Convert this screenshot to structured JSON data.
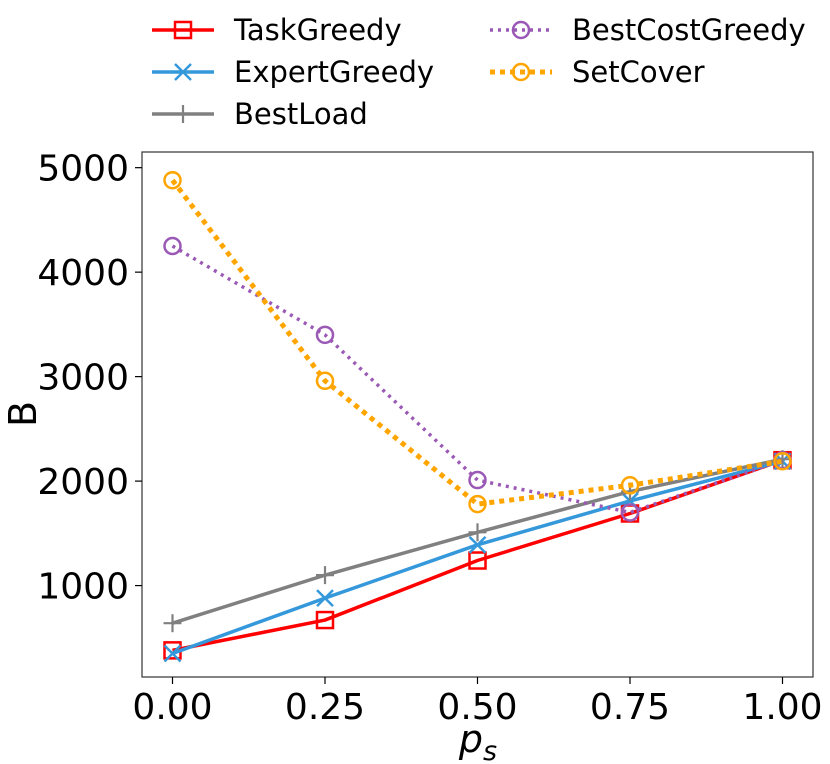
{
  "chart_data": {
    "type": "line",
    "title": "",
    "xlabel": "p",
    "xlabel_sub": "s",
    "ylabel": "B",
    "x": [
      0.0,
      0.25,
      0.5,
      0.75,
      1.0
    ],
    "x_tick_labels": [
      "0.00",
      "0.25",
      "0.50",
      "0.75",
      "1.00"
    ],
    "y_ticks": [
      1000,
      2000,
      3000,
      4000,
      5000
    ],
    "y_tick_labels": [
      "1000",
      "2000",
      "3000",
      "4000",
      "5000"
    ],
    "xlim": [
      -0.05,
      1.05
    ],
    "ylim": [
      125,
      5150
    ],
    "grid": false,
    "legend_position": "top",
    "series": [
      {
        "name": "TaskGreedy",
        "values": [
          380,
          670,
          1240,
          1690,
          2200
        ],
        "color": "#ff0000",
        "marker": "square",
        "style": "solid"
      },
      {
        "name": "ExpertGreedy",
        "values": [
          350,
          880,
          1390,
          1810,
          2190
        ],
        "color": "#3498db",
        "marker": "x",
        "style": "solid"
      },
      {
        "name": "BestLoad",
        "values": [
          640,
          1100,
          1510,
          1900,
          2210
        ],
        "color": "#808080",
        "marker": "plus",
        "style": "solid"
      },
      {
        "name": "BestCostGreedy",
        "values": [
          4250,
          3400,
          2010,
          1700,
          2200
        ],
        "color": "#9b59b6",
        "marker": "circle",
        "style": "dotted"
      },
      {
        "name": "SetCover",
        "values": [
          4880,
          2960,
          1780,
          1960,
          2190
        ],
        "color": "#ffa500",
        "marker": "circle",
        "style": "dotted"
      }
    ]
  }
}
